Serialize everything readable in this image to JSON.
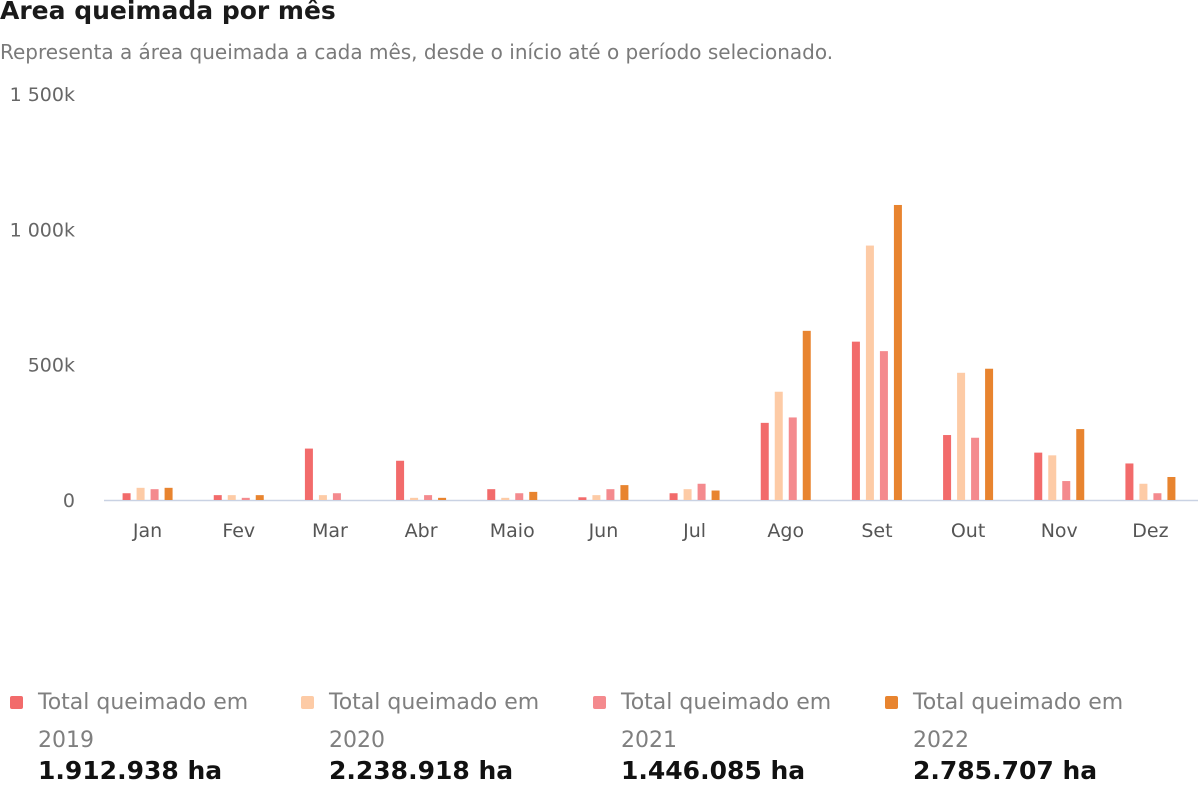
{
  "header": {
    "title": "Área queimada por mês",
    "subtitle": "Representa a área queimada a cada mês, desde o início até o período selecionado."
  },
  "chart_data": {
    "type": "bar",
    "categories": [
      "Jan",
      "Fev",
      "Mar",
      "Abr",
      "Maio",
      "Jun",
      "Jul",
      "Ago",
      "Set",
      "Out",
      "Nov",
      "Dez"
    ],
    "yticks": [
      0,
      500000,
      1000000,
      1500000
    ],
    "ytick_labels": [
      "0",
      "500k",
      "1 000k",
      "1 500k"
    ],
    "ylim": [
      0,
      1500000
    ],
    "grid": false,
    "legend_position": "bottom",
    "series": [
      {
        "name": "Total queimado em 2019",
        "color": "#f26b6b",
        "values": [
          25000,
          18000,
          190000,
          145000,
          40000,
          10000,
          25000,
          285000,
          585000,
          240000,
          175000,
          135000
        ]
      },
      {
        "name": "Total queimado em 2020",
        "color": "#fdcba6",
        "values": [
          45000,
          18000,
          18000,
          8000,
          8000,
          18000,
          40000,
          400000,
          940000,
          470000,
          165000,
          60000
        ]
      },
      {
        "name": "Total queimado em 2021",
        "color": "#f48a8e",
        "values": [
          40000,
          8000,
          25000,
          18000,
          25000,
          40000,
          60000,
          305000,
          550000,
          230000,
          70000,
          25000
        ]
      },
      {
        "name": "Total queimado em 2022",
        "color": "#e8842f",
        "values": [
          45000,
          18000,
          0,
          8000,
          30000,
          55000,
          35000,
          625000,
          1090000,
          485000,
          262000,
          85000
        ]
      }
    ]
  },
  "legend": [
    {
      "label": "Total queimado em 2019",
      "value": "1.912.938 ha",
      "color": "#f26b6b"
    },
    {
      "label": "Total queimado em 2020",
      "value": "2.238.918 ha",
      "color": "#fdcba6"
    },
    {
      "label": "Total queimado em 2021",
      "value": "1.446.085 ha",
      "color": "#f48a8e"
    },
    {
      "label": "Total queimado em 2022",
      "value": "2.785.707 ha",
      "color": "#e8842f"
    }
  ]
}
